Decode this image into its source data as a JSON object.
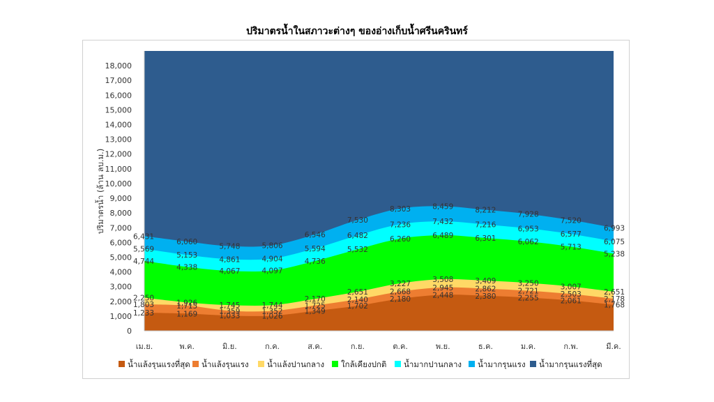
{
  "chart_data": {
    "type": "area",
    "title": "ปริมาตรน้ำในสภาวะต่างๆ ของอ่างเก็บน้ำศรีนครินทร์",
    "ylabel": "ปริมาตรน้ำ (ล้าน ลบ.ม.)",
    "xlabel": "",
    "ylim": [
      0,
      19000
    ],
    "yticks": [
      0,
      1000,
      2000,
      3000,
      4000,
      5000,
      6000,
      7000,
      8000,
      9000,
      10000,
      11000,
      12000,
      13000,
      14000,
      15000,
      16000,
      17000,
      18000
    ],
    "ytick_labels": [
      "0",
      "1,000",
      "2,000",
      "3,000",
      "4,000",
      "5,000",
      "6,000",
      "7,000",
      "8,000",
      "9,000",
      "10,000",
      "11,000",
      "12,000",
      "13,000",
      "14,000",
      "15,000",
      "16,000",
      "17,000",
      "18,000"
    ],
    "categories": [
      "เม.ย.",
      "พ.ค.",
      "มิ.ย.",
      "ก.ค.",
      "ส.ค.",
      "ก.ย.",
      "ต.ค.",
      "พ.ย.",
      "ธ.ค.",
      "ม.ค.",
      "ก.พ.",
      "มี.ค."
    ],
    "legend_position": "bottom",
    "grid": false,
    "series": [
      {
        "name": "น้ำแล้งรุนแรงที่สุด",
        "color": "#C55A11",
        "values": [
          1233,
          1169,
          1033,
          1026,
          1349,
          1702,
          2180,
          2448,
          2380,
          2255,
          2061,
          1768
        ],
        "labels": [
          "1,233",
          "1,169",
          "1,033",
          "1,026",
          "1,349",
          "1,702",
          "2,180",
          "2,448",
          "2,380",
          "2,255",
          "2,061",
          "1,768"
        ]
      },
      {
        "name": "น้ำแล้งรุนแรง",
        "color": "#ED7D31",
        "values": [
          1803,
          1715,
          1359,
          1352,
          1725,
          2140,
          2668,
          2945,
          2862,
          2721,
          2503,
          2178
        ],
        "labels": [
          "1,803",
          "1,715",
          "1,359",
          "1,352",
          "1,725",
          "2,140",
          "2,668",
          "2,945",
          "2,862",
          "2,721",
          "2,503",
          "2,178"
        ]
      },
      {
        "name": "น้ำแล้งปานกลาง",
        "color": "#FFD966",
        "values": [
          2250,
          1926,
          1745,
          1744,
          2170,
          2651,
          3227,
          3508,
          3409,
          3250,
          3007,
          2651
        ],
        "labels": [
          "2,250",
          "1,926",
          "1,745",
          "1,744",
          "2,170",
          "2,651",
          "3,227",
          "3,508",
          "3,409",
          "3,250",
          "3,007",
          "2,651"
        ]
      },
      {
        "name": "ใกล้เคียงปกติ",
        "color": "#00FF00",
        "values": [
          4744,
          4338,
          4067,
          4097,
          4736,
          5532,
          6260,
          6489,
          6301,
          6062,
          5713,
          5238
        ],
        "labels": [
          "4,744",
          "4,338",
          "4,067",
          "4,097",
          "4,736",
          "5,532",
          "6,260",
          "6,489",
          "6,301",
          "6,062",
          "5,713",
          "5,238"
        ]
      },
      {
        "name": "น้ำมากปานกลาง",
        "color": "#00FFFF",
        "values": [
          5569,
          5153,
          4861,
          4904,
          5594,
          6482,
          7236,
          7432,
          7216,
          6953,
          6577,
          6075
        ],
        "labels": [
          "5,569",
          "5,153",
          "4,861",
          "4,904",
          "5,594",
          "6,482",
          "7,236",
          "7,432",
          "7,216",
          "6,953",
          "6,577",
          "6,075"
        ]
      },
      {
        "name": "น้ำมากรุนแรง",
        "color": "#00B0F0",
        "values": [
          6431,
          6060,
          5748,
          5806,
          6546,
          7530,
          8303,
          8459,
          8212,
          7928,
          7520,
          6993
        ],
        "labels": [
          "6,431",
          "6,060",
          "5,748",
          "5,806",
          "6,546",
          "7,530",
          "8,303",
          "8,459",
          "8,212",
          "7,928",
          "7,520",
          "6,993"
        ]
      },
      {
        "name": "น้ำมากรุนแรงที่สุด",
        "color": "#2E5C8E",
        "values": [
          19000,
          19000,
          19000,
          19000,
          19000,
          19000,
          19000,
          19000,
          19000,
          19000,
          19000,
          19000
        ],
        "labels": []
      }
    ]
  }
}
